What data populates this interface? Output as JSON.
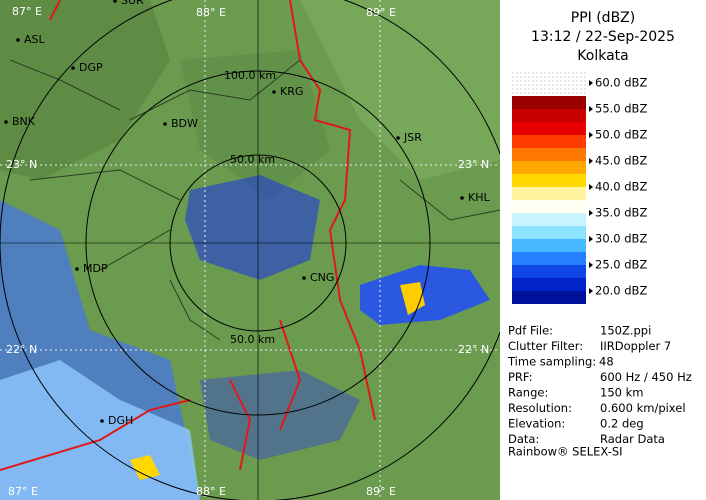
{
  "map": {
    "grid_labels": [
      "87° E",
      "88° E",
      "89° E",
      "23° N",
      "23° N",
      "22° N",
      "22° N",
      "87° E",
      "88° E",
      "89° E"
    ],
    "cities": [
      "SUR",
      "ASL",
      "DGP",
      "BNK",
      "BDW",
      "KRG",
      "JSR",
      "KHL",
      "MDP",
      "CNG",
      "DGH"
    ],
    "ring_labels": [
      "100.0 km",
      "50.0 km",
      "50.0 km"
    ]
  },
  "panel": {
    "title": "PPI (dBZ)",
    "time": "13:12 / 22-Sep-2025",
    "site": "Kolkata",
    "scale": [
      "60.0 dBZ",
      "55.0 dBZ",
      "50.0 dBZ",
      "45.0 dBZ",
      "40.0 dBZ",
      "35.0 dBZ",
      "30.0 dBZ",
      "25.0 dBZ",
      "20.0 dBZ"
    ],
    "band_colors": [
      [
        "#9a0000",
        "#c80000"
      ],
      [
        "#e60000",
        "#ff3c00"
      ],
      [
        "#ff7800",
        "#ffa800"
      ],
      [
        "#ffd800",
        "#fff4a0"
      ],
      [
        "#fffff4",
        "#c8f4ff"
      ],
      [
        "#8ee4ff",
        "#48b8ff"
      ],
      [
        "#2480ff",
        "#1046e6"
      ],
      [
        "#0024c8",
        "#00129c"
      ]
    ],
    "info": [
      [
        "Pdf File:",
        "150Z.ppi"
      ],
      [
        "Clutter Filter:",
        "IIRDoppler 7"
      ],
      [
        "Time sampling:",
        "48"
      ],
      [
        "PRF:",
        "600 Hz / 450 Hz"
      ],
      [
        "Range:",
        "150 km"
      ],
      [
        "Resolution:",
        "0.600 km/pixel"
      ],
      [
        "Elevation:",
        "0.2 deg"
      ],
      [
        "Data:",
        "Radar Data"
      ]
    ],
    "footer": "Rainbow® SELEX-SI"
  }
}
